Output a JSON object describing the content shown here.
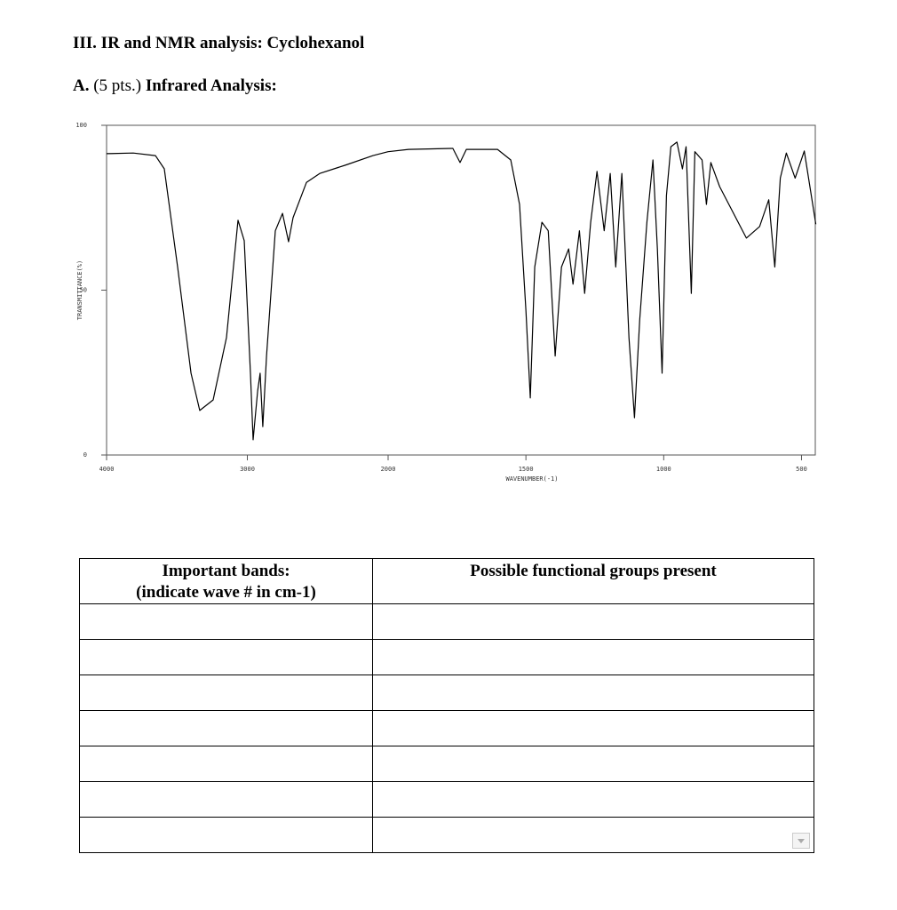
{
  "header": {
    "title": "III. IR and NMR analysis: Cyclohexanol"
  },
  "section": {
    "label": "A.",
    "points": "(5 pts.)",
    "title": "Infrared Analysis:"
  },
  "chart_data": {
    "type": "line",
    "xlabel": "WAVENUMBER(-1)",
    "ylabel": "TRANSMITTANCE(%)",
    "color": "#000000",
    "xlim": [
      4000,
      450
    ],
    "xbreak": 2000,
    "xticks": [
      4000,
      3000,
      2000,
      1500,
      1000,
      500
    ],
    "ylim": [
      0,
      100
    ],
    "yticks": [
      0,
      50,
      100
    ],
    "x": [
      4000,
      3811,
      3653,
      3590,
      3495,
      3400,
      3338,
      3243,
      3148,
      3066,
      3022,
      2978,
      2959,
      2927,
      2909,
      2890,
      2864,
      2801,
      2750,
      2707,
      2675,
      2580,
      2486,
      2297,
      2107,
      2000,
      1926,
      1765,
      1739,
      1716,
      1603,
      1555,
      1523,
      1500,
      1484,
      1468,
      1442,
      1419,
      1394,
      1371,
      1345,
      1329,
      1306,
      1287,
      1265,
      1242,
      1216,
      1194,
      1174,
      1152,
      1126,
      1106,
      1087,
      1061,
      1039,
      1023,
      1006,
      990,
      974,
      952,
      932,
      919,
      900,
      887,
      861,
      845,
      829,
      797,
      700,
      652,
      619,
      597,
      577,
      555,
      523,
      490,
      448
    ],
    "values": [
      91.4,
      91.6,
      90.8,
      86.8,
      57,
      24.8,
      13.5,
      16.7,
      35.6,
      71.2,
      65,
      24.8,
      4.6,
      19.4,
      24.8,
      8.6,
      30,
      68,
      73.3,
      64.7,
      72,
      82.7,
      85.4,
      88,
      90.8,
      92,
      92.7,
      93,
      88.7,
      92.7,
      92.7,
      89.5,
      76,
      43.7,
      17.3,
      57,
      70.6,
      68,
      30,
      57,
      62.5,
      51.8,
      68,
      49,
      70.6,
      86,
      68,
      85.4,
      57,
      85.4,
      35.6,
      11.3,
      41,
      70.6,
      89.5,
      62.5,
      24.8,
      78.7,
      93.5,
      94.9,
      86.8,
      93.5,
      49,
      92,
      89.5,
      76,
      88.7,
      81.4,
      65.8,
      69.3,
      77.4,
      57,
      84,
      91.6,
      84,
      92.2,
      70
    ]
  },
  "table": {
    "headers": [
      [
        "Important bands:",
        "(indicate wave # in cm-1)"
      ],
      [
        "Possible functional groups present"
      ]
    ]
  }
}
